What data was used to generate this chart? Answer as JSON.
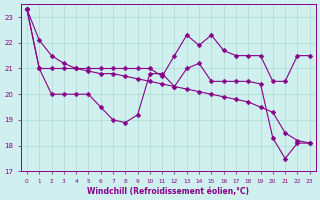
{
  "xlabel": "Windchill (Refroidissement éolien,°C)",
  "background_color": "#cff0ee",
  "grid_color": "#aaddcc",
  "line_color": "#880088",
  "xlim": [
    -0.5,
    23.5
  ],
  "ylim": [
    17,
    23.5
  ],
  "yticks": [
    17,
    18,
    19,
    20,
    21,
    22,
    23
  ],
  "xticks": [
    0,
    1,
    2,
    3,
    4,
    5,
    6,
    7,
    8,
    9,
    10,
    11,
    12,
    13,
    14,
    15,
    16,
    17,
    18,
    19,
    20,
    21,
    22,
    23
  ],
  "line1": [
    23.3,
    22.1,
    21.5,
    21.2,
    21.0,
    20.9,
    20.8,
    20.8,
    20.7,
    20.6,
    20.5,
    20.4,
    20.3,
    20.2,
    20.1,
    20.0,
    19.9,
    19.8,
    19.7,
    19.5,
    19.3,
    18.5,
    18.2,
    18.1
  ],
  "line2": [
    23.3,
    21.0,
    20.0,
    20.0,
    20.0,
    20.0,
    19.5,
    19.0,
    18.9,
    19.2,
    20.8,
    20.8,
    20.3,
    21.0,
    21.2,
    20.5,
    20.5,
    20.5,
    20.5,
    20.4,
    18.3,
    17.5,
    18.1,
    18.1
  ],
  "line3": [
    23.3,
    21.0,
    21.0,
    21.0,
    21.0,
    21.0,
    21.0,
    21.0,
    21.0,
    21.0,
    21.0,
    20.7,
    21.5,
    22.3,
    21.9,
    22.3,
    21.7,
    21.5,
    21.5,
    21.5,
    20.5,
    20.5,
    21.5,
    21.5
  ]
}
